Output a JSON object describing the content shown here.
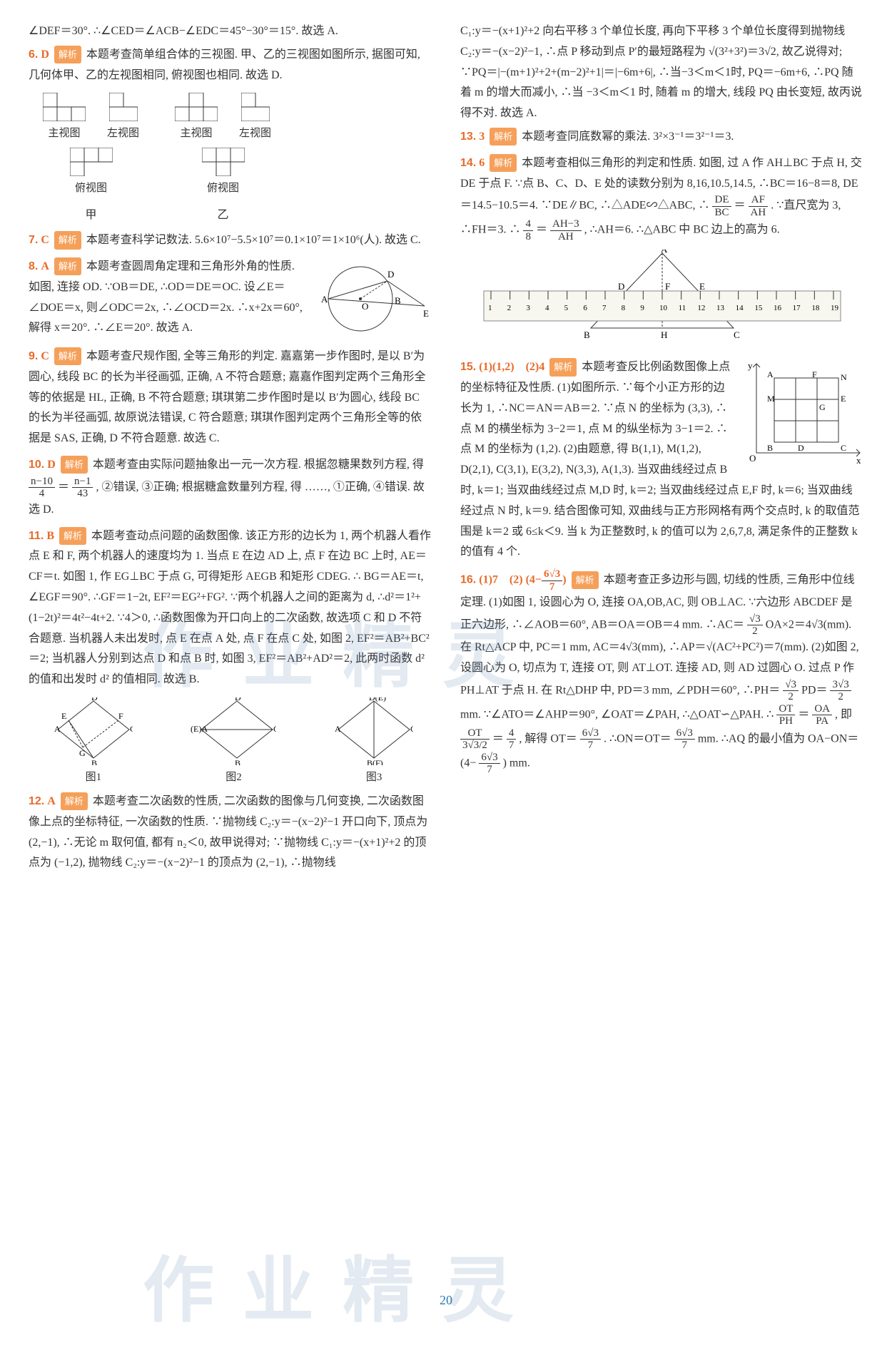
{
  "page_number": "20",
  "watermark_text": "作业精灵",
  "tag_label": "解析",
  "colors": {
    "accent": "#e86a2a",
    "tag_bg": "#f5a05a",
    "tag_fg": "#ffffff",
    "text": "#333333",
    "bg": "#ffffff",
    "watermark": "rgba(100,140,180,0.18)",
    "pgnum": "#2a7ab0"
  },
  "left": {
    "intro": "∠DEF＝30°. ∴∠CED＝∠ACB−∠EDC＝45°−30°＝15°. 故选 A.",
    "q6": {
      "num": "6.",
      "ans": "D",
      "text": "本题考查简单组合体的三视图. 甲、乙的三视图如图所示, 据图可知, 几何体甲、乙的左视图相同, 俯视图也相同. 故选 D."
    },
    "views": {
      "labels": {
        "main": "主视图",
        "left": "左视图",
        "top": "俯视图"
      },
      "set_a": "甲",
      "set_b": "乙"
    },
    "q7": {
      "num": "7.",
      "ans": "C",
      "text": "本题考查科学记数法. 5.6×10⁷−5.5×10⁷＝0.1×10⁷＝1×10⁶(人). 故选 C."
    },
    "q8": {
      "num": "8.",
      "ans": "A",
      "text": "本题考查圆周角定理和三角形外角的性质. 如图, 连接 OD. ∵OB＝DE, ∴OD＝DE＝OC. 设∠E＝∠DOE＝x, 则∠ODC＝2x, ∴∠OCD＝2x. ∴x+2x＝60°, 解得 x＝20°. ∴∠E＝20°. 故选 A."
    },
    "q9": {
      "num": "9.",
      "ans": "C",
      "text": "本题考查尺规作图, 全等三角形的判定. 嘉嘉第一步作图时, 是以 B′为圆心, 线段 BC 的长为半径画弧, 正确, A 不符合题意; 嘉嘉作图判定两个三角形全等的依据是 HL, 正确, B 不符合题意; 琪琪第二步作图时是以 B′为圆心, 线段 BC 的长为半径画弧, 故原说法错误, C 符合题意; 琪琪作图判定两个三角形全等的依据是 SAS, 正确, D 不符合题意. 故选 C."
    },
    "q10": {
      "num": "10.",
      "ans": "D",
      "text": "本题考查由实际问题抽象出一元一次方程. 根据忽糖果数列方程, 得",
      "frac1_num": "n−10",
      "frac1_den": "4",
      "mid": "＝",
      "frac2_num": "n−1",
      "frac2_den": "43",
      "text2": ", ②错误, ③正确; 根据糖盒数量列方程, 得 ……, ①正确, ④错误. 故选 D."
    },
    "q11": {
      "num": "11.",
      "ans": "B",
      "text": "本题考查动点问题的函数图像. 该正方形的边长为 1, 两个机器人看作点 E 和 F, 两个机器人的速度均为 1. 当点 E 在边 AD 上, 点 F 在边 BC 上时, AE＝CF＝t. 如图 1, 作 EG⊥BC 于点 G, 可得矩形 AEGB 和矩形 CDEG. ∴ BG＝AE＝t, ∠EGF＝90°. ∴GF＝1−2t, EF²＝EG²+FG². ∵两个机器人之间的距离为 d, ∴d²＝1²+(1−2t)²＝4t²−4t+2. ∵4＞0, ∴函数图像为开口向上的二次函数, 故选项 C 和 D 不符合题意. 当机器人未出发时, 点 E 在点 A 处, 点 F 在点 C 处, 如图 2, EF²＝AB²+BC²＝2; 当机器人分别到达点 D 和点 B 时, 如图 3, EF²＝AB²+AD²＝2, 此两时函数 d² 的值和出发时 d² 的值相同. 故选 B."
    },
    "rhombus": {
      "fig1": "图1",
      "fig2": "图2",
      "fig3": "图3"
    },
    "q12": {
      "num": "12.",
      "ans": "A",
      "text": "本题考查二次函数的性质, 二次函数的图像与几何变换, 二次函数图像上点的坐标特征, 一次函数的性质. ∵抛物线 C₂:y＝−(x−2)²−1 开口向下, 顶点为 (2,−1), ∴无论 m 取何值, 都有 n₂＜0, 故甲说得对; ∵抛物线 C₁:y＝−(x+1)²+2 的顶点为 (−1,2), 抛物线 C₂:y＝−(x−2)²−1 的顶点为 (2,−1), ∴抛物线"
    }
  },
  "right": {
    "cont12": "C₁:y＝−(x+1)²+2 向右平移 3 个单位长度, 再向下平移 3 个单位长度得到抛物线 C₂:y＝−(x−2)²−1, ∴点 P 移动到点 P′的最短路程为 √(3²+3²)＝3√2, 故乙说得对; ∵PQ＝|−(m+1)²+2+(m−2)²+1|＝|−6m+6|, ∴当−3＜m＜1时, PQ＝−6m+6, ∴PQ 随着 m 的增大而减小, ∴当 −3＜m＜1 时, 随着 m 的增大, 线段 PQ 由长变短, 故丙说得不对. 故选 A.",
    "q13": {
      "num": "13.",
      "ans": "3",
      "text": "本题考查同底数幂的乘法. 3²×3⁻¹＝3²⁻¹＝3."
    },
    "q14": {
      "num": "14.",
      "ans": "6",
      "text": "本题考查相似三角形的判定和性质. 如图, 过 A 作 AH⊥BC 于点 H, 交 DE 于点 F. ∵点 B、C、D、E 处的读数分别为 8,16,10.5,14.5, ∴BC＝16−8＝8, DE＝14.5−10.5＝4. ∵DE∥BC, ∴△ADE∽△ABC, ∴",
      "frac1_top": "DE",
      "frac1_bot": "BC",
      "mid1": "＝",
      "frac2_top": "AF",
      "frac2_bot": "AH",
      "text2": ". ∵直尺宽为 3, ∴FH＝3. ∴",
      "frac3_top": "4",
      "frac3_bot": "8",
      "mid2": "＝",
      "frac4_top": "AH−3",
      "frac4_bot": "AH",
      "text3": ", ∴AH＝6. ∴△ABC 中 BC 边上的高为 6."
    },
    "ruler": {
      "start": 1,
      "end": 19
    },
    "q15": {
      "num": "15.",
      "ans": "(1)(1,2)　(2)4",
      "text": "本题考查反比例函数图像上点的坐标特征及性质. (1)如图所示. ∵每个小正方形的边长为 1, ∴NC＝AN＝AB＝2. ∵点 N 的坐标为 (3,3), ∴点 M 的横坐标为 3−2＝1, 点 M 的纵坐标为 3−1＝2. ∴点 M 的坐标为 (1,2). (2)由题意, 得 B(1,1), M(1,2), D(2,1), C(3,1), E(3,2), N(3,3), A(1,3). 当双曲线经过点 B 时, k＝1; 当双曲线经过点 M,D 时, k＝2; 当双曲线经过点 E,F 时, k＝6; 当双曲线经过点 N 时, k＝9. 结合图像可知, 双曲线与正方形网格有两个交点时, k 的取值范围是 k＝2 或 6≤k＜9. 当 k 为正整数时, k 的值可以为 2,6,7,8, 满足条件的正整数 k 的值有 4 个."
    },
    "q16": {
      "num": "16.",
      "ans_p1": "(1)7　(2)",
      "ans_frac_pre": "(4−",
      "ans_frac_num": "6√3",
      "ans_frac_den": "7",
      "ans_frac_post": ")",
      "text": "本题考查正多边形与圆, 切线的性质, 三角形中位线定理. (1)如图 1, 设圆心为 O, 连接 OA,OB,AC, 则 OB⊥AC. ∵六边形 ABCDEF 是正六边形, ∴∠AOB＝60°, AB＝OA＝OB＝4 mm. ∴AC＝",
      "f1n": "√3",
      "f1d": "2",
      "t2": "OA×2＝4√3(mm). 在 Rt△ACP 中, PC＝1 mm, AC＝4√3(mm), ∴AP＝√(AC²+PC²)＝7(mm). (2)如图 2, 设圆心为 O, 切点为 T, 连接 OT, 则 AT⊥OT. 连接 AD, 则 AD 过圆心 O. 过点 P 作 PH⊥AT 于点 H. 在 Rt△DHP 中, PD＝3 mm, ∠PDH＝60°, ∴PH＝",
      "f2n": "√3",
      "f2d": "2",
      "t3": "PD＝",
      "f3n": "3√3",
      "f3d": "2",
      "t4": " mm. ∵∠ATO＝∠AHP＝90°, ∠OAT＝∠PAH, ∴△OAT∽△PAH. ∴",
      "f4n": "OT",
      "f4d": "PH",
      "t5": "＝",
      "f5n": "OA",
      "f5d": "PA",
      "t6": ", 即",
      "f6n": "OT",
      "f6d": "3√3/2",
      "t7": "＝",
      "f7n": "4",
      "f7d": "7",
      "t8": ", 解得 OT＝",
      "f8n": "6√3",
      "f8d": "7",
      "t9": ". ∴ON＝OT＝",
      "f9n": "6√3",
      "f9d": "7",
      "t10": " mm. ∴AQ 的最小值为 OA−ON＝(4−",
      "f10n": "6√3",
      "f10d": "7",
      "t11": ") mm."
    }
  }
}
